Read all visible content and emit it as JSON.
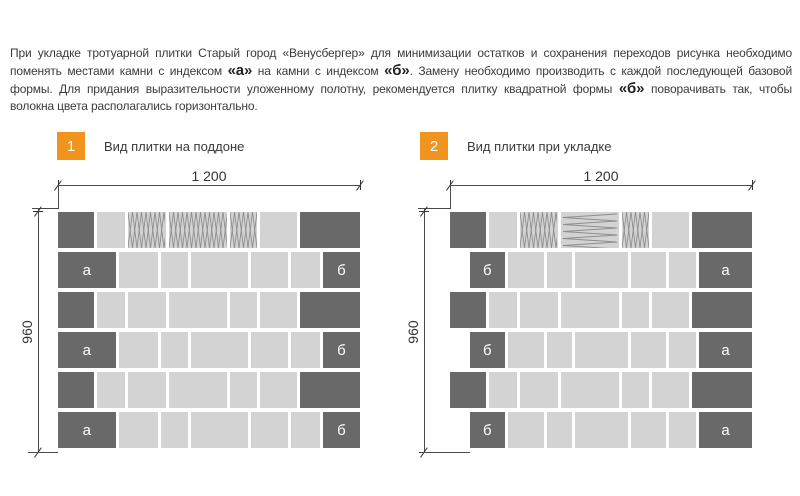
{
  "intro": {
    "segments": [
      {
        "text": "При укладке тротуарной плитки Старый город «Венусбергер» для минимизации остатков и сохранения переходов рисунка необходимо поменять местами камни с индексом ",
        "bold": false
      },
      {
        "text": "«а»",
        "bold": true
      },
      {
        "text": " на камни с индексом ",
        "bold": false
      },
      {
        "text": "«б»",
        "bold": true
      },
      {
        "text": ". Замену необходимо производить с каждой последующей базовой формы. Для придания выразительности уложенному полотну, рекомендуется плитку квадратной формы ",
        "bold": false
      },
      {
        "text": "«б»",
        "bold": true
      },
      {
        "text": " поворачивать так, чтобы волокна цвета располагались горизонтально.",
        "bold": false
      }
    ]
  },
  "sections": [
    {
      "badge": "1",
      "title": "Вид плитки на поддоне"
    },
    {
      "badge": "2",
      "title": "Вид плитки при укладке"
    }
  ],
  "colors": {
    "accent": "#f0941f",
    "tile_dark": "#696969",
    "tile_light": "#d3d3d3",
    "hatch_line": "#8e8e8e"
  },
  "diagrams": [
    {
      "title": "Вид плитки на поддоне",
      "width_label": "1 200",
      "height_label": "960",
      "rows": [
        {
          "offset": false,
          "tiles": [
            [
              "dark",
              36,
              ""
            ],
            [
              "light",
              28,
              ""
            ],
            [
              "hatch_v",
              37,
              ""
            ],
            [
              "hatch_v",
              58,
              ""
            ],
            [
              "hatch_v",
              27,
              ""
            ],
            [
              "light",
              36,
              ""
            ],
            [
              "dark",
              60,
              ""
            ]
          ]
        },
        {
          "offset": false,
          "tiles": [
            [
              "dark",
              59,
              "а"
            ],
            [
              "light",
              40,
              ""
            ],
            [
              "light",
              28,
              ""
            ],
            [
              "light",
              58,
              ""
            ],
            [
              "light",
              38,
              ""
            ],
            [
              "light",
              30,
              ""
            ],
            [
              "dark",
              38,
              "б"
            ]
          ]
        },
        {
          "offset": false,
          "tiles": [
            [
              "dark",
              36,
              ""
            ],
            [
              "light",
              28,
              ""
            ],
            [
              "light",
              37,
              ""
            ],
            [
              "light",
              58,
              ""
            ],
            [
              "light",
              27,
              ""
            ],
            [
              "light",
              36,
              ""
            ],
            [
              "dark",
              60,
              ""
            ]
          ]
        },
        {
          "offset": false,
          "tiles": [
            [
              "dark",
              59,
              "а"
            ],
            [
              "light",
              40,
              ""
            ],
            [
              "light",
              28,
              ""
            ],
            [
              "light",
              58,
              ""
            ],
            [
              "light",
              38,
              ""
            ],
            [
              "light",
              30,
              ""
            ],
            [
              "dark",
              38,
              "б"
            ]
          ]
        },
        {
          "offset": false,
          "tiles": [
            [
              "dark",
              36,
              ""
            ],
            [
              "light",
              28,
              ""
            ],
            [
              "light",
              37,
              ""
            ],
            [
              "light",
              58,
              ""
            ],
            [
              "light",
              27,
              ""
            ],
            [
              "light",
              36,
              ""
            ],
            [
              "dark",
              60,
              ""
            ]
          ]
        },
        {
          "offset": false,
          "tiles": [
            [
              "dark",
              59,
              "а"
            ],
            [
              "light",
              40,
              ""
            ],
            [
              "light",
              28,
              ""
            ],
            [
              "light",
              58,
              ""
            ],
            [
              "light",
              38,
              ""
            ],
            [
              "light",
              30,
              ""
            ],
            [
              "dark",
              38,
              "б"
            ]
          ]
        }
      ]
    },
    {
      "title": "Вид плитки при укладке",
      "width_label": "1 200",
      "height_label": "960",
      "rows": [
        {
          "offset": false,
          "tiles": [
            [
              "dark",
              36,
              ""
            ],
            [
              "light",
              28,
              ""
            ],
            [
              "hatch_v",
              37,
              ""
            ],
            [
              "hatch_h",
              58,
              ""
            ],
            [
              "hatch_v",
              27,
              ""
            ],
            [
              "light",
              36,
              ""
            ],
            [
              "dark",
              60,
              ""
            ]
          ]
        },
        {
          "offset": true,
          "tiles": [
            [
              "dark",
              38,
              "б"
            ],
            [
              "light",
              40,
              ""
            ],
            [
              "light",
              28,
              ""
            ],
            [
              "light",
              58,
              ""
            ],
            [
              "light",
              38,
              ""
            ],
            [
              "light",
              30,
              ""
            ],
            [
              "dark",
              58,
              "а"
            ]
          ]
        },
        {
          "offset": false,
          "tiles": [
            [
              "dark",
              36,
              ""
            ],
            [
              "light",
              28,
              ""
            ],
            [
              "light",
              37,
              ""
            ],
            [
              "light",
              58,
              ""
            ],
            [
              "light",
              27,
              ""
            ],
            [
              "light",
              36,
              ""
            ],
            [
              "dark",
              60,
              ""
            ]
          ]
        },
        {
          "offset": true,
          "tiles": [
            [
              "dark",
              38,
              "б"
            ],
            [
              "light",
              40,
              ""
            ],
            [
              "light",
              28,
              ""
            ],
            [
              "light",
              58,
              ""
            ],
            [
              "light",
              38,
              ""
            ],
            [
              "light",
              30,
              ""
            ],
            [
              "dark",
              58,
              "а"
            ]
          ]
        },
        {
          "offset": false,
          "tiles": [
            [
              "dark",
              36,
              ""
            ],
            [
              "light",
              28,
              ""
            ],
            [
              "light",
              37,
              ""
            ],
            [
              "light",
              58,
              ""
            ],
            [
              "light",
              27,
              ""
            ],
            [
              "light",
              36,
              ""
            ],
            [
              "dark",
              60,
              ""
            ]
          ]
        },
        {
          "offset": true,
          "tiles": [
            [
              "dark",
              38,
              "б"
            ],
            [
              "light",
              40,
              ""
            ],
            [
              "light",
              28,
              ""
            ],
            [
              "light",
              58,
              ""
            ],
            [
              "light",
              38,
              ""
            ],
            [
              "light",
              30,
              ""
            ],
            [
              "dark",
              58,
              "а"
            ]
          ]
        }
      ]
    }
  ]
}
